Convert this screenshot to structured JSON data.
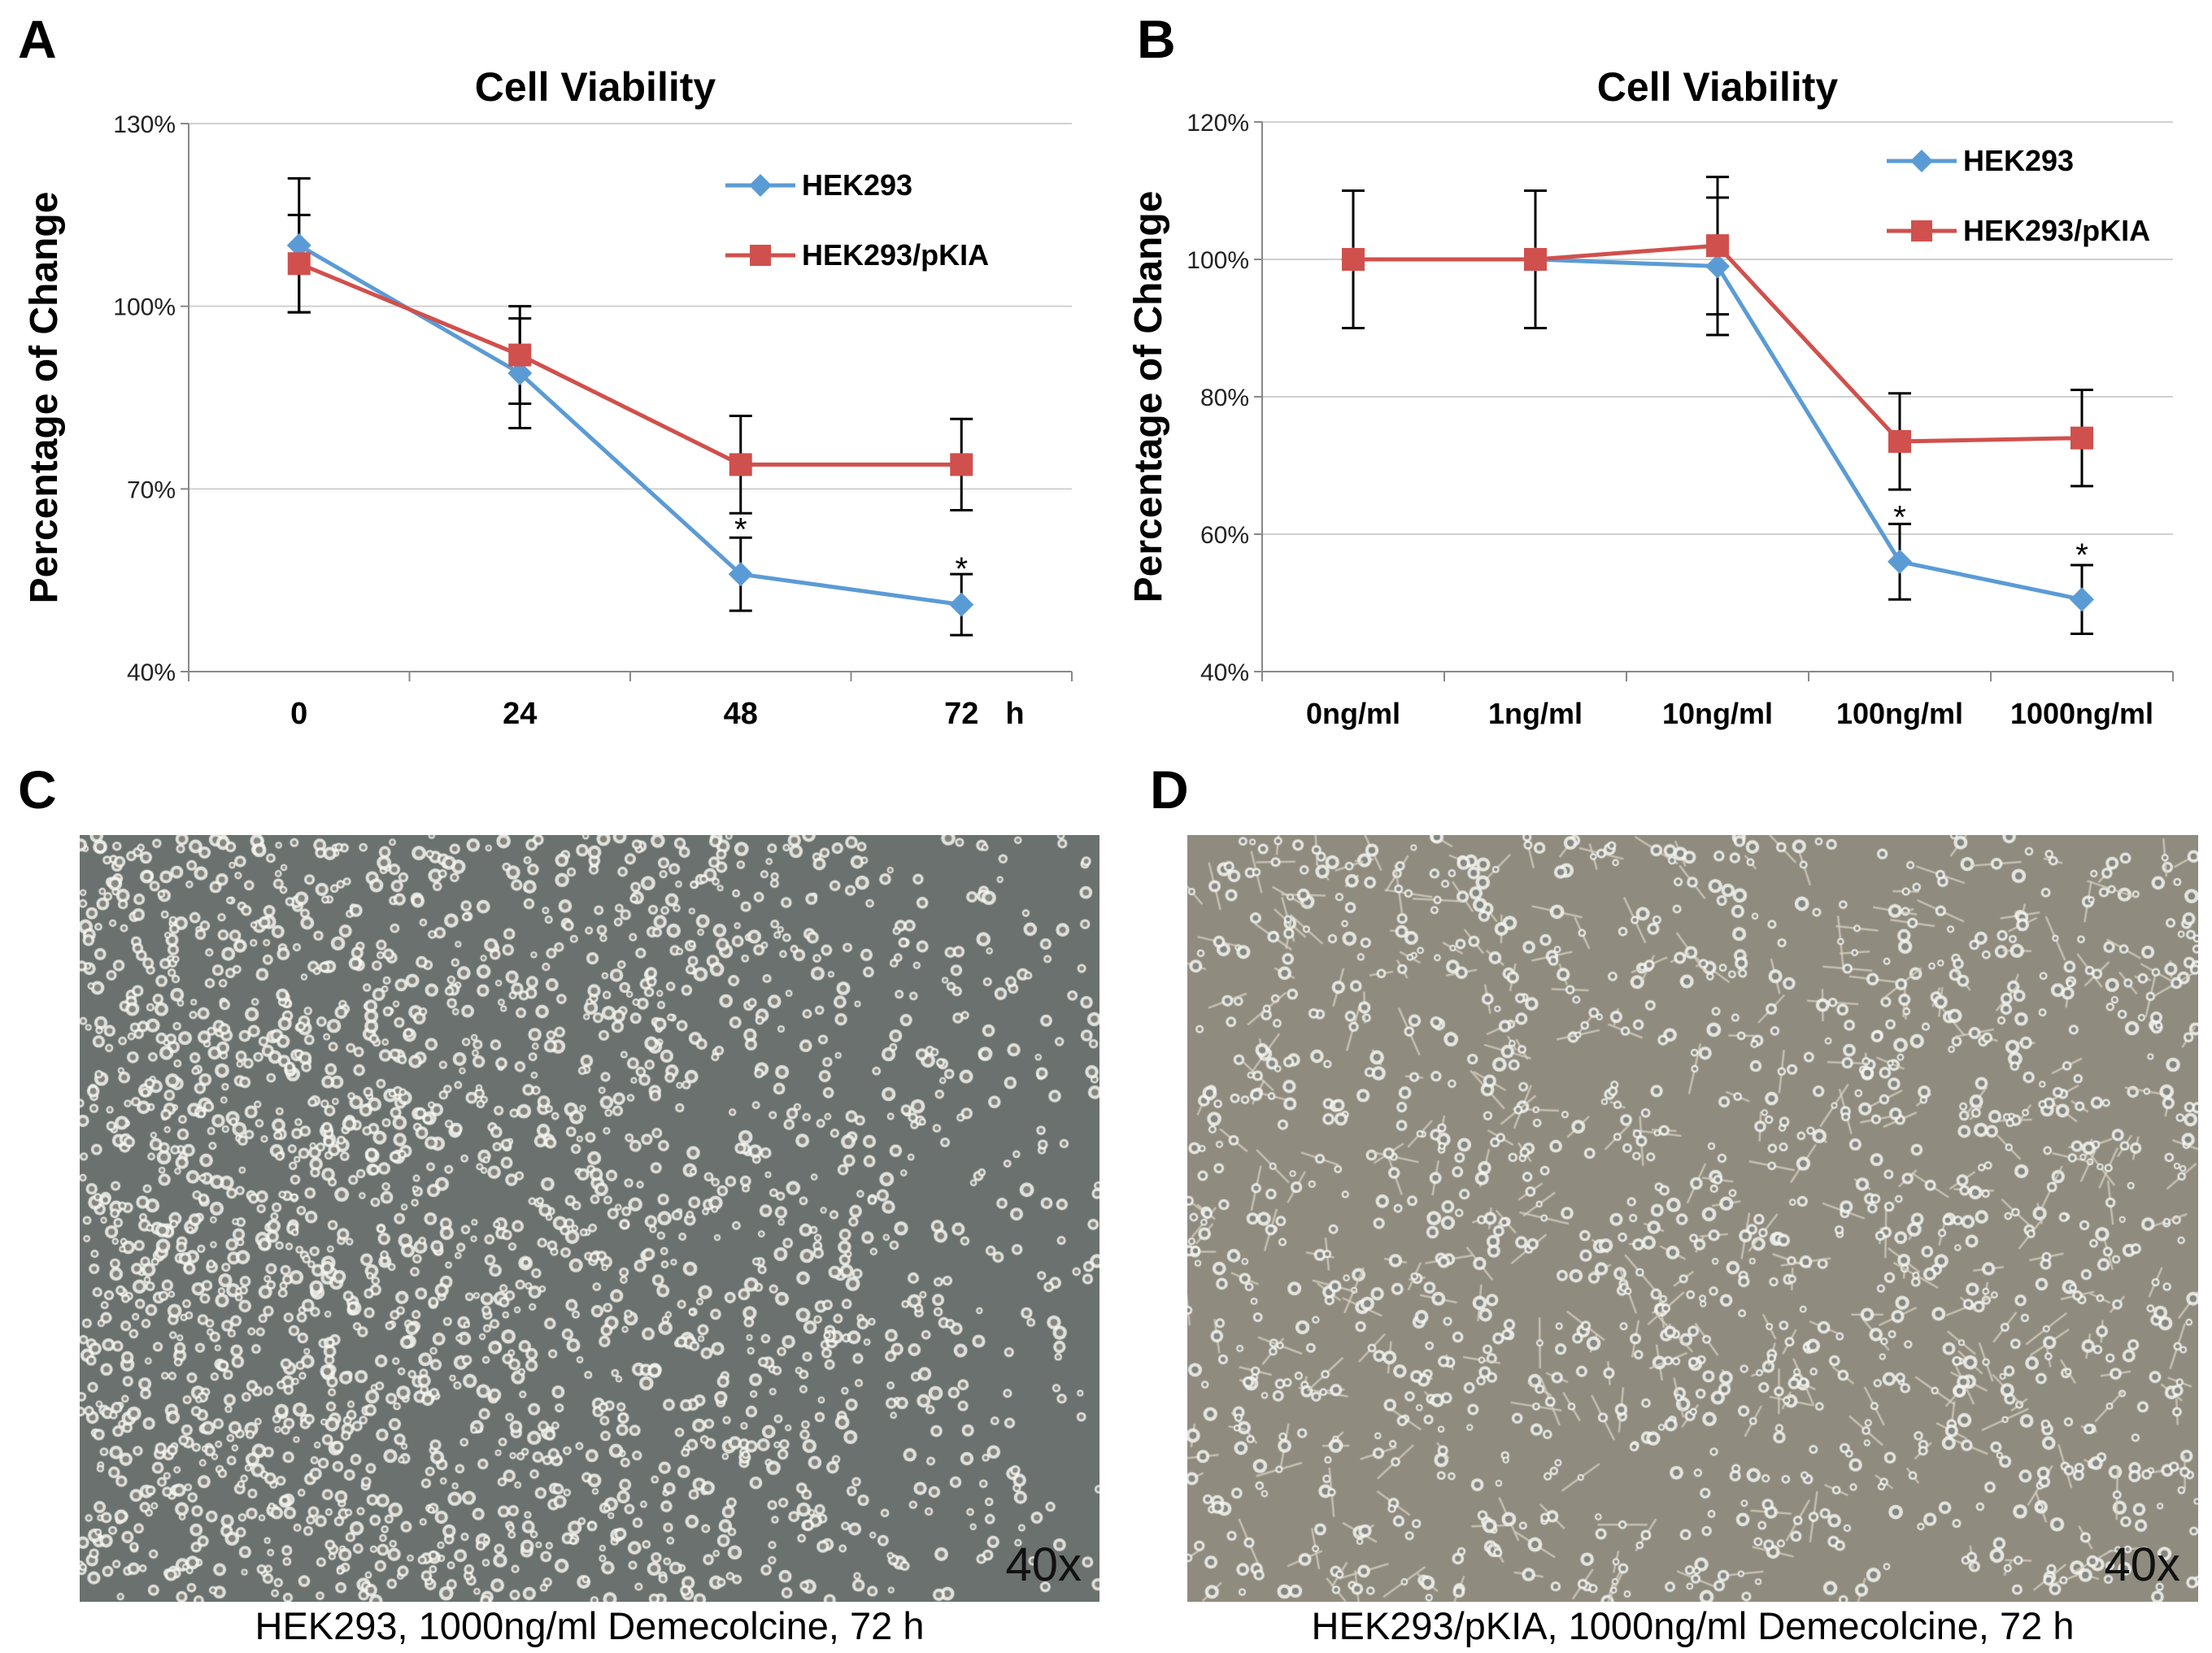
{
  "panels": {
    "a": {
      "letter": "A"
    },
    "b": {
      "letter": "B"
    },
    "c": {
      "letter": "C",
      "magnification": "40x",
      "caption": "HEK293, 1000ng/ml Demecolcine, 72 h"
    },
    "d": {
      "letter": "D",
      "magnification": "40x",
      "caption": "HEK293/pKIA, 1000ng/ml Demecolcine, 72 h"
    }
  },
  "colors": {
    "hek293": "#5b9bd5",
    "pkia": "#d0504d",
    "photo_c_bg": "#6a716e",
    "photo_d_bg": "#8f8b7f"
  },
  "chart_data": [
    {
      "id": "a",
      "type": "line",
      "title": "Cell Viability",
      "xlabel": "h",
      "ylabel": "Percentage of Change",
      "categories": [
        "0",
        "24",
        "48",
        "72"
      ],
      "ylim": [
        40,
        130
      ],
      "yticks": [
        40,
        70,
        100,
        130
      ],
      "ytick_labels": [
        "40%",
        "70%",
        "100%",
        "130%"
      ],
      "grid": true,
      "legend": "top-right",
      "series": [
        {
          "name": "HEK293",
          "color": "#5b9bd5",
          "marker": "diamond",
          "values": [
            110,
            89,
            56,
            51
          ],
          "errors": [
            11,
            9,
            6,
            5
          ]
        },
        {
          "name": "HEK293/pKIA",
          "color": "#d0504d",
          "marker": "square",
          "values": [
            107,
            92,
            74,
            74
          ],
          "errors": [
            8,
            8,
            8,
            7.5
          ]
        }
      ],
      "annotations": [
        {
          "text": "*",
          "category": "48",
          "y": 64.5
        },
        {
          "text": "*",
          "category": "72",
          "y": 58
        }
      ]
    },
    {
      "id": "b",
      "type": "line",
      "title": "Cell Viability",
      "xlabel": "",
      "ylabel": "Percentage of Change",
      "categories": [
        "0ng/ml",
        "1ng/ml",
        "10ng/ml",
        "100ng/ml",
        "1000ng/ml"
      ],
      "ylim": [
        40,
        120
      ],
      "yticks": [
        40,
        60,
        80,
        100,
        120
      ],
      "ytick_labels": [
        "40%",
        "60%",
        "80%",
        "100%",
        "120%"
      ],
      "grid": true,
      "legend": "top-right",
      "series": [
        {
          "name": "HEK293",
          "color": "#5b9bd5",
          "marker": "diamond",
          "values": [
            100,
            100,
            99,
            56,
            50.5
          ],
          "errors": [
            10,
            10,
            10,
            5.5,
            5
          ]
        },
        {
          "name": "HEK293/pKIA",
          "color": "#d0504d",
          "marker": "square",
          "values": [
            100,
            100,
            102,
            73.5,
            74
          ],
          "errors": [
            10,
            10,
            10,
            7,
            7
          ]
        }
      ],
      "annotations": [
        {
          "text": "*",
          "category": "100ng/ml",
          "y": 63.5
        },
        {
          "text": "*",
          "category": "1000ng/ml",
          "y": 58
        }
      ]
    }
  ]
}
